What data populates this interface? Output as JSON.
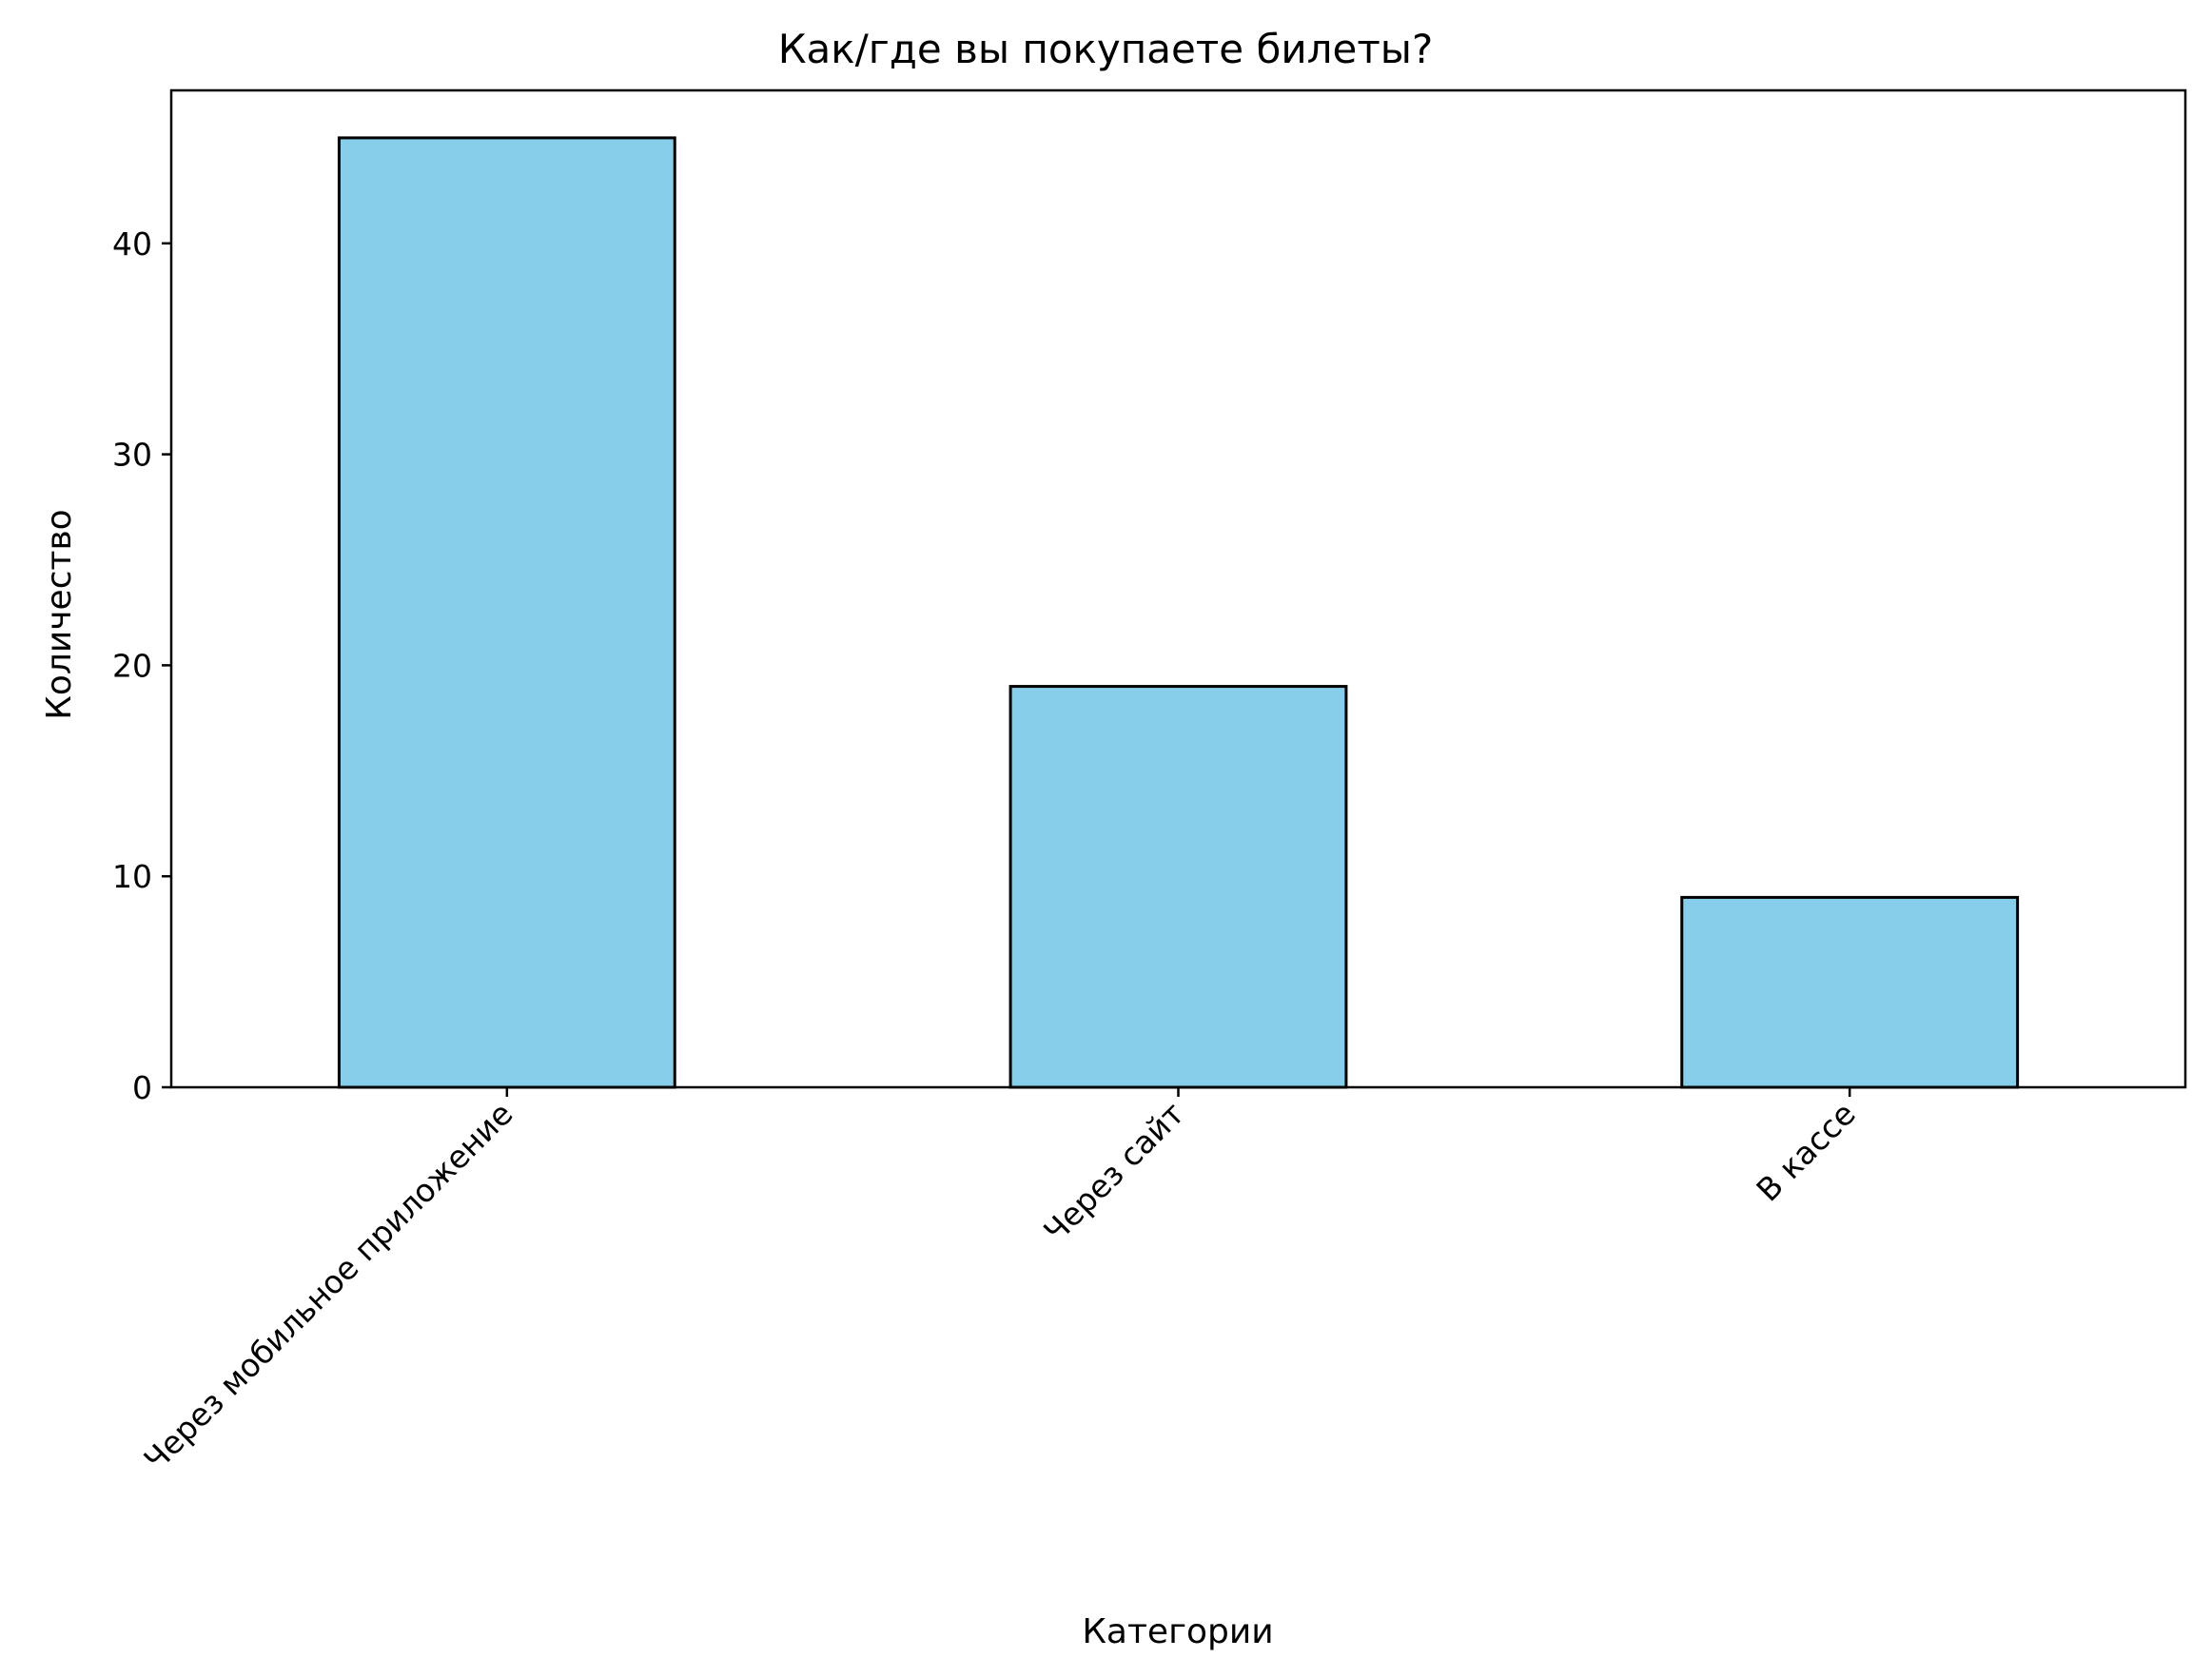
{
  "chart_data": {
    "type": "bar",
    "title": "Как/где вы покупаете билеты?",
    "xlabel": "Категории",
    "ylabel": "Количество",
    "categories": [
      "Через мобильное приложение",
      "Через сайт",
      "В кассе"
    ],
    "values": [
      45,
      19,
      9
    ],
    "ylim": [
      0,
      47.25
    ],
    "yticks": [
      0,
      10,
      20,
      30,
      40
    ],
    "bar_color": "#87CEEB",
    "edge_color": "#000000",
    "grid": false,
    "legend": "none"
  }
}
